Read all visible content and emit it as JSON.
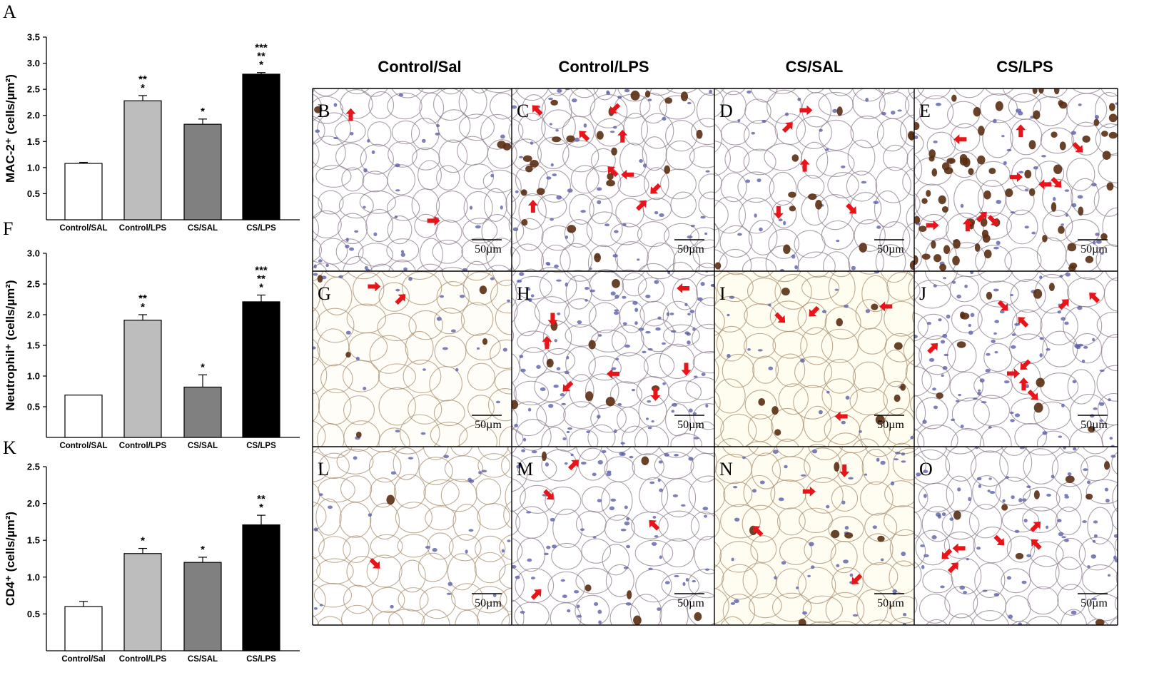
{
  "column_headers": [
    "Control/Sal",
    "Control/LPS",
    "CS/SAL",
    "CS/LPS"
  ],
  "micro_letters": [
    [
      "B",
      "C",
      "D",
      "E"
    ],
    [
      "G",
      "H",
      "I",
      "J"
    ],
    [
      "L",
      "M",
      "N",
      "O"
    ]
  ],
  "scale_bar_label": "50µm",
  "colors": {
    "bar_fills": [
      "#ffffff",
      "#bdbdbd",
      "#808080",
      "#000000"
    ],
    "arrow": "#e8141a",
    "stain_brown": "#5a2e12",
    "nuclei_blue": "#5b5fa8",
    "tissue_outline": "#8f7f90"
  },
  "chart_data": [
    {
      "type": "bar",
      "panel_letter": "A",
      "ylabel": "MAC-2⁺ (cells/µm²)",
      "categories": [
        "Control/SAL",
        "Control/LPS",
        "CS/SAL",
        "CS/LPS"
      ],
      "values": [
        1.08,
        2.28,
        1.83,
        2.79
      ],
      "errors": [
        0.02,
        0.1,
        0.1,
        0.03
      ],
      "ylim": [
        0,
        3.5
      ],
      "yticks": [
        "0.5",
        "1.0",
        "1.5",
        "2.0",
        "2.5",
        "3.0",
        "3.5"
      ],
      "significance": [
        [],
        [
          "**",
          "*"
        ],
        [
          "*"
        ],
        [
          "***",
          "**",
          "*"
        ]
      ],
      "grid": false
    },
    {
      "type": "bar",
      "panel_letter": "F",
      "ylabel": "Neutrophil⁺ (cells/µm²)",
      "categories": [
        "Control/SAL",
        "Control/LPS",
        "CS/SAL",
        "CS/LPS"
      ],
      "values": [
        0.69,
        1.91,
        0.82,
        2.21
      ],
      "errors": [
        0.0,
        0.09,
        0.2,
        0.11
      ],
      "ylim": [
        0,
        3.0
      ],
      "yticks": [
        "0.5",
        "1.0",
        "1.5",
        "2.0",
        "2.5",
        "3.0"
      ],
      "significance": [
        [],
        [
          "**",
          "*"
        ],
        [
          "*"
        ],
        [
          "***",
          "**",
          "*"
        ]
      ],
      "grid": false
    },
    {
      "type": "bar",
      "panel_letter": "K",
      "ylabel": "CD4⁺ (cells/µm²)",
      "categories": [
        "Control/Sal",
        "Control/LPS",
        "CS/SAL",
        "CS/LPS"
      ],
      "values": [
        0.6,
        1.32,
        1.2,
        1.71
      ],
      "errors": [
        0.07,
        0.07,
        0.07,
        0.13
      ],
      "ylim": [
        0,
        2.5
      ],
      "yticks": [
        "0.5",
        "1.0",
        "1.5",
        "2.0",
        "2.5"
      ],
      "significance": [
        [],
        [
          "*"
        ],
        [
          "*"
        ],
        [
          "**",
          "*"
        ]
      ],
      "grid": false
    }
  ]
}
